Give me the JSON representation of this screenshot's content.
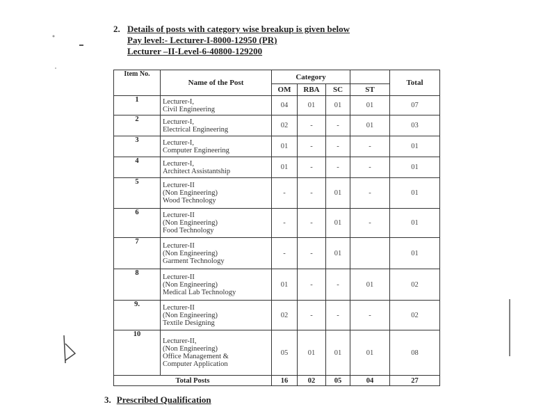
{
  "section2": {
    "number": "2.",
    "lines": [
      "Details of posts with category wise breakup is given below",
      "Pay level:- Lecturer-I-8000-12950 (PR)",
      "Lecturer –II-Level-6-40800-129200"
    ]
  },
  "table": {
    "headers": {
      "item_no": "Item No.",
      "name": "Name of the Post",
      "category": "Category",
      "om": "OM",
      "rba": "RBA",
      "sc": "SC",
      "st": "ST",
      "total": "Total"
    },
    "rows": [
      {
        "item": "1",
        "name": [
          "Lecturer-I,",
          "Civil Engineering"
        ],
        "om": "04",
        "rba": "01",
        "sc": "01",
        "st": "01",
        "total": "07"
      },
      {
        "item": "2",
        "name": [
          "Lecturer-I,",
          "Electrical Engineering"
        ],
        "om": "02",
        "rba": "-",
        "sc": "-",
        "st": "01",
        "total": "03"
      },
      {
        "item": "3",
        "name": [
          "Lecturer-I,",
          "Computer Engineering"
        ],
        "om": "01",
        "rba": "-",
        "sc": "-",
        "st": "-",
        "total": "01"
      },
      {
        "item": "4",
        "name": [
          "Lecturer-I,",
          "Architect Assistantship"
        ],
        "om": "01",
        "rba": "-",
        "sc": "-",
        "st": "-",
        "total": "01"
      },
      {
        "item": "5",
        "name": [
          "Lecturer-II",
          "(Non Engineering)",
          "Wood Technology"
        ],
        "om": "-",
        "rba": "-",
        "sc": "01",
        "st": "-",
        "total": "01"
      },
      {
        "item": "6",
        "name": [
          "Lecturer-II",
          "(Non Engineering)",
          "Food Technology"
        ],
        "om": "-",
        "rba": "-",
        "sc": "01",
        "st": "-",
        "total": "01"
      },
      {
        "item": "7",
        "name": [
          "Lecturer-II",
          "(Non Engineering)",
          "Garment Technology"
        ],
        "om": "-",
        "rba": "-",
        "sc": "01",
        "st": "",
        "total": "01"
      },
      {
        "item": "8",
        "name": [
          "Lecturer-II",
          "(Non Engineering)",
          "Medical Lab Technology"
        ],
        "om": "01",
        "rba": "-",
        "sc": "-",
        "st": "01",
        "total": "02"
      },
      {
        "item": "9.",
        "name": [
          "Lecturer-II",
          "(Non Engineering)",
          "Textile Designing"
        ],
        "om": "02",
        "rba": "-",
        "sc": "-",
        "st": "-",
        "total": "02"
      },
      {
        "item": "10",
        "name": [
          "Lecturer-II,",
          "(Non Engineering)",
          "Office Management &",
          "Computer Application"
        ],
        "om": "05",
        "rba": "01",
        "sc": "01",
        "st": "01",
        "total": "08"
      }
    ],
    "totals": {
      "label": "Total Posts",
      "om": "16",
      "rba": "02",
      "sc": "05",
      "st": "04",
      "total": "27"
    }
  },
  "section3": {
    "number": "3.",
    "title": "Prescribed Qualification"
  }
}
